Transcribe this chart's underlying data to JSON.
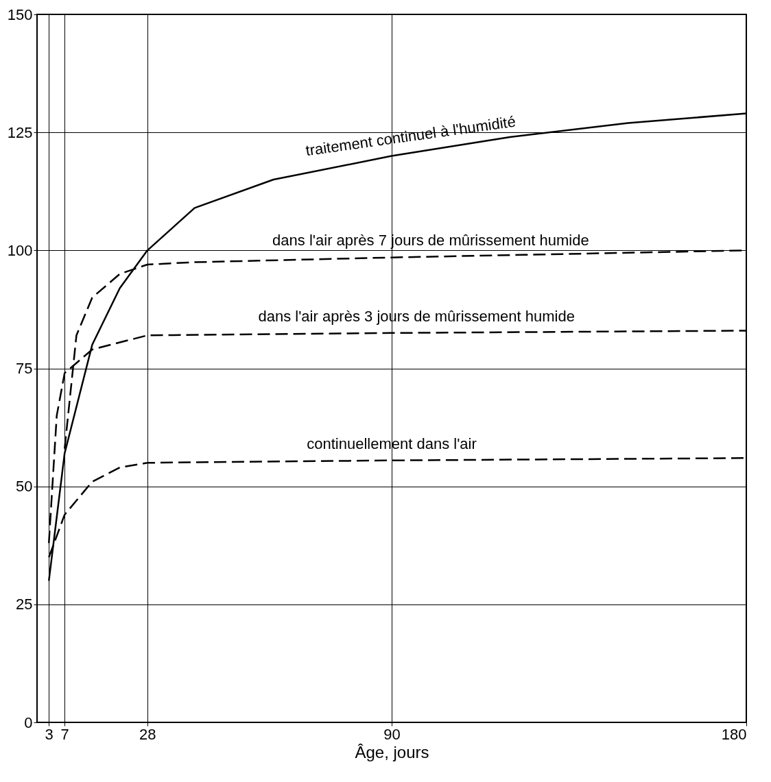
{
  "chart_data": {
    "type": "line",
    "xlabel": "Âge, jours",
    "xlim": [
      0,
      180
    ],
    "xticks": [
      3,
      7,
      28,
      90,
      180
    ],
    "ylim": [
      0,
      150
    ],
    "yticks": [
      0,
      25,
      50,
      75,
      100,
      125,
      150
    ],
    "grid": true,
    "series": [
      {
        "name": "traitement continuel à l'humidité",
        "color": "#000000",
        "line_style": "solid",
        "x": [
          3,
          7,
          14,
          21,
          28,
          40,
          60,
          90,
          120,
          150,
          180
        ],
        "values": [
          30,
          57,
          80,
          92,
          100,
          109,
          115,
          120,
          124,
          127,
          129
        ]
      },
      {
        "name": "dans l'air après 7 jours de mûrissement humide",
        "color": "#000000",
        "line_style": "dashed",
        "x": [
          7,
          10,
          14,
          21,
          28,
          40,
          90,
          180
        ],
        "values": [
          58,
          82,
          90,
          95,
          97,
          97.5,
          98.5,
          100
        ]
      },
      {
        "name": "dans l'air après 3 jours de mûrissement humide",
        "color": "#000000",
        "line_style": "dashed",
        "x": [
          3,
          5,
          7,
          14,
          28,
          90,
          180
        ],
        "values": [
          38,
          65,
          74,
          79,
          82,
          82.5,
          83
        ]
      },
      {
        "name": "continuellement dans l'air",
        "color": "#000000",
        "line_style": "dashed",
        "x": [
          3,
          7,
          14,
          21,
          28,
          90,
          180
        ],
        "values": [
          35,
          44,
          51,
          54,
          55,
          55.5,
          56
        ]
      }
    ]
  }
}
